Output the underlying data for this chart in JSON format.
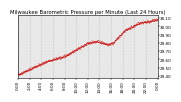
{
  "title": "Milwaukee Barometric Pressure per Minute (Last 24 Hours)",
  "background_color": "#ffffff",
  "plot_bg_color": "#e8e8e8",
  "line_color": "#cc0000",
  "grid_color": "#aaaaaa",
  "y_min": 29.38,
  "y_max": 30.14,
  "x_min": 0,
  "x_max": 1440,
  "num_points": 1440,
  "trend_start": 29.42,
  "trend_end": 30.08,
  "noise_scale": 0.008,
  "tick_label_fontsize": 3.0,
  "title_fontsize": 3.8,
  "y_ticks": [
    29.4,
    29.5,
    29.6,
    29.7,
    29.8,
    29.9,
    30.0,
    30.1
  ],
  "x_tick_positions": [
    0,
    120,
    240,
    360,
    480,
    600,
    720,
    840,
    960,
    1080,
    1200,
    1320,
    1440
  ],
  "x_tick_labels": [
    "0:00",
    "2:00",
    "4:00",
    "6:00",
    "8:00",
    "10:00",
    "12:00",
    "14:00",
    "16:00",
    "18:00",
    "20:00",
    "22:00",
    "0:00"
  ],
  "segment_breaks": [
    {
      "start": 0,
      "end": 300,
      "y_start": 29.42,
      "y_end": 29.58
    },
    {
      "start": 300,
      "end": 480,
      "y_start": 29.58,
      "y_end": 29.64
    },
    {
      "start": 480,
      "end": 600,
      "y_start": 29.64,
      "y_end": 29.72
    },
    {
      "start": 600,
      "end": 720,
      "y_start": 29.72,
      "y_end": 29.8
    },
    {
      "start": 720,
      "end": 820,
      "y_start": 29.8,
      "y_end": 29.82
    },
    {
      "start": 820,
      "end": 920,
      "y_start": 29.82,
      "y_end": 29.78
    },
    {
      "start": 920,
      "end": 980,
      "y_start": 29.78,
      "y_end": 29.8
    },
    {
      "start": 980,
      "end": 1100,
      "y_start": 29.8,
      "y_end": 29.95
    },
    {
      "start": 1100,
      "end": 1250,
      "y_start": 29.95,
      "y_end": 30.04
    },
    {
      "start": 1250,
      "end": 1440,
      "y_start": 30.04,
      "y_end": 30.08
    }
  ]
}
